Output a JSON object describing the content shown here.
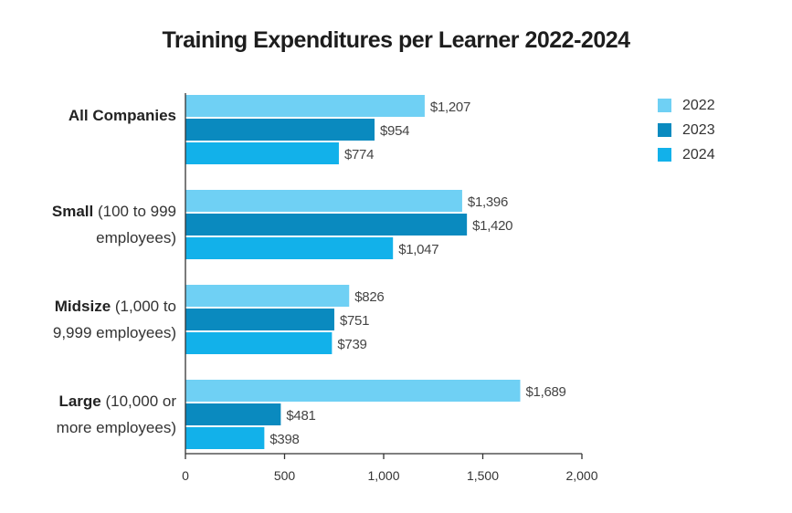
{
  "chart_data": {
    "type": "bar",
    "orientation": "horizontal",
    "title": "Training Expenditures per Learner 2022-2024",
    "categories": [
      {
        "bold": "All Companies",
        "rest_line1": "",
        "rest_line2": ""
      },
      {
        "bold": "Small",
        "rest_line1": "(100 to 999",
        "rest_line2": "employees)"
      },
      {
        "bold": "Midsize",
        "rest_line1": "(1,000 to",
        "rest_line2": "9,999 employees)"
      },
      {
        "bold": "Large",
        "rest_line1": "(10,000 or",
        "rest_line2": "more employees)"
      }
    ],
    "series": [
      {
        "name": "2022",
        "color": "#6fd0f4",
        "values": [
          1207,
          1396,
          826,
          1689
        ],
        "labels": [
          "$1,207",
          "$1,396",
          "$826",
          "$1,689"
        ]
      },
      {
        "name": "2023",
        "color": "#0a8abf",
        "values": [
          954,
          1420,
          751,
          481
        ],
        "labels": [
          "$954",
          "$1,420",
          "$751",
          "$481"
        ]
      },
      {
        "name": "2024",
        "color": "#12b1ea",
        "values": [
          774,
          1047,
          739,
          398
        ],
        "labels": [
          "$774",
          "$1,047",
          "$739",
          "$398"
        ]
      }
    ],
    "xlim": [
      0,
      2000
    ],
    "xticks": [
      "0",
      "500",
      "1,000",
      "1,500",
      "2,000"
    ],
    "xtick_values": [
      0,
      500,
      1000,
      1500,
      2000
    ],
    "grid": false,
    "legend_position": "top-right"
  }
}
